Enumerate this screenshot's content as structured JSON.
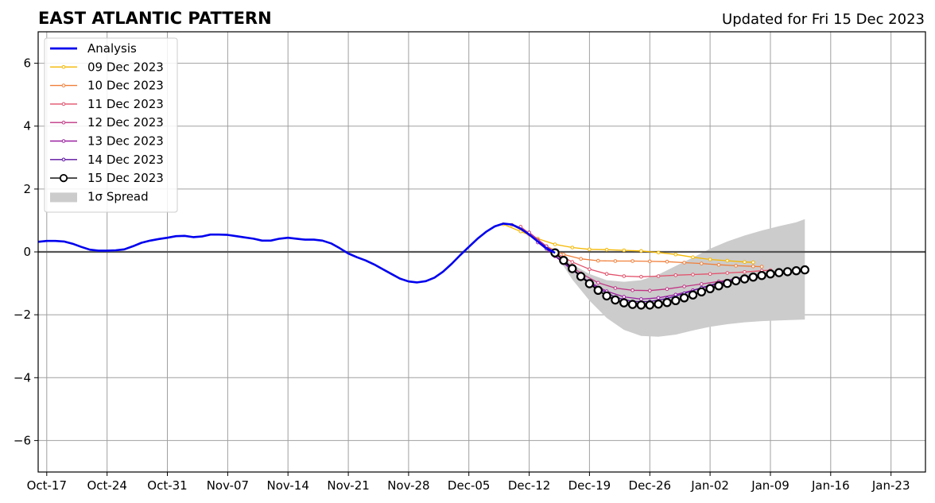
{
  "header": {
    "title": "EAST ATLANTIC PATTERN",
    "updated": "Updated for Fri 15 Dec 2023"
  },
  "chart_data": {
    "type": "line",
    "title": "EAST ATLANTIC PATTERN",
    "subtitle": "Updated for Fri 15 Dec 2023",
    "xlabel": "",
    "ylabel": "",
    "x_axis": {
      "start": "2023-10-16",
      "end": "2024-01-27",
      "ticks": [
        {
          "date": "2023-10-17",
          "label": "Oct-17"
        },
        {
          "date": "2023-10-24",
          "label": "Oct-24"
        },
        {
          "date": "2023-10-31",
          "label": "Oct-31"
        },
        {
          "date": "2023-11-07",
          "label": "Nov-07"
        },
        {
          "date": "2023-11-14",
          "label": "Nov-14"
        },
        {
          "date": "2023-11-21",
          "label": "Nov-21"
        },
        {
          "date": "2023-11-28",
          "label": "Nov-28"
        },
        {
          "date": "2023-12-05",
          "label": "Dec-05"
        },
        {
          "date": "2023-12-12",
          "label": "Dec-12"
        },
        {
          "date": "2023-12-19",
          "label": "Dec-19"
        },
        {
          "date": "2023-12-26",
          "label": "Dec-26"
        },
        {
          "date": "2024-01-02",
          "label": "Jan-02"
        },
        {
          "date": "2024-01-09",
          "label": "Jan-09"
        },
        {
          "date": "2024-01-16",
          "label": "Jan-16"
        },
        {
          "date": "2024-01-23",
          "label": "Jan-23"
        }
      ]
    },
    "y_axis": {
      "ylim": [
        -7,
        7
      ],
      "ticks": [
        {
          "value": 6,
          "label": "6"
        },
        {
          "value": 4,
          "label": "4"
        },
        {
          "value": 2,
          "label": "2"
        },
        {
          "value": 0,
          "label": "0"
        },
        {
          "value": -2,
          "label": "−2"
        },
        {
          "value": -4,
          "label": "−4"
        },
        {
          "value": -6,
          "label": "−6"
        }
      ]
    },
    "grid": true,
    "legend_position": "top-left",
    "zero_line": true,
    "analysis": {
      "name": "Analysis",
      "color": "#0000ee",
      "points": [
        [
          "2023-10-16",
          0.32
        ],
        [
          "2023-10-17",
          0.35
        ],
        [
          "2023-10-18",
          0.35
        ],
        [
          "2023-10-19",
          0.33
        ],
        [
          "2023-10-20",
          0.26
        ],
        [
          "2023-10-21",
          0.16
        ],
        [
          "2023-10-22",
          0.07
        ],
        [
          "2023-10-23",
          0.04
        ],
        [
          "2023-10-24",
          0.04
        ],
        [
          "2023-10-25",
          0.05
        ],
        [
          "2023-10-26",
          0.08
        ],
        [
          "2023-10-27",
          0.18
        ],
        [
          "2023-10-28",
          0.29
        ],
        [
          "2023-10-29",
          0.36
        ],
        [
          "2023-10-30",
          0.41
        ],
        [
          "2023-10-31",
          0.45
        ],
        [
          "2023-11-01",
          0.5
        ],
        [
          "2023-11-02",
          0.51
        ],
        [
          "2023-11-03",
          0.47
        ],
        [
          "2023-11-04",
          0.49
        ],
        [
          "2023-11-05",
          0.55
        ],
        [
          "2023-11-06",
          0.55
        ],
        [
          "2023-11-07",
          0.54
        ],
        [
          "2023-11-08",
          0.5
        ],
        [
          "2023-11-09",
          0.46
        ],
        [
          "2023-11-10",
          0.42
        ],
        [
          "2023-11-11",
          0.36
        ],
        [
          "2023-11-12",
          0.36
        ],
        [
          "2023-11-13",
          0.42
        ],
        [
          "2023-11-14",
          0.45
        ],
        [
          "2023-11-15",
          0.42
        ],
        [
          "2023-11-16",
          0.39
        ],
        [
          "2023-11-17",
          0.39
        ],
        [
          "2023-11-18",
          0.36
        ],
        [
          "2023-11-19",
          0.27
        ],
        [
          "2023-11-20",
          0.12
        ],
        [
          "2023-11-21",
          -0.05
        ],
        [
          "2023-11-22",
          -0.17
        ],
        [
          "2023-11-23",
          -0.27
        ],
        [
          "2023-11-24",
          -0.4
        ],
        [
          "2023-11-25",
          -0.55
        ],
        [
          "2023-11-26",
          -0.7
        ],
        [
          "2023-11-27",
          -0.85
        ],
        [
          "2023-11-28",
          -0.94
        ],
        [
          "2023-11-29",
          -0.97
        ],
        [
          "2023-11-30",
          -0.93
        ],
        [
          "2023-12-01",
          -0.82
        ],
        [
          "2023-12-02",
          -0.63
        ],
        [
          "2023-12-03",
          -0.38
        ],
        [
          "2023-12-04",
          -0.1
        ],
        [
          "2023-12-05",
          0.16
        ],
        [
          "2023-12-06",
          0.42
        ],
        [
          "2023-12-07",
          0.64
        ],
        [
          "2023-12-08",
          0.81
        ],
        [
          "2023-12-09",
          0.9
        ],
        [
          "2023-12-10",
          0.87
        ],
        [
          "2023-12-11",
          0.74
        ],
        [
          "2023-12-12",
          0.55
        ],
        [
          "2023-12-13",
          0.33
        ],
        [
          "2023-12-14",
          0.12
        ],
        [
          "2023-12-15",
          -0.03
        ]
      ]
    },
    "spread": {
      "name": "1σ Spread",
      "color": "#cccccc",
      "upper": [
        [
          "2023-12-15",
          -0.03
        ],
        [
          "2023-12-17",
          -0.4
        ],
        [
          "2023-12-19",
          -0.7
        ],
        [
          "2023-12-21",
          -0.9
        ],
        [
          "2023-12-23",
          -0.95
        ],
        [
          "2023-12-25",
          -0.9
        ],
        [
          "2023-12-27",
          -0.72
        ],
        [
          "2023-12-29",
          -0.45
        ],
        [
          "2023-12-31",
          -0.18
        ],
        [
          "2024-01-02",
          0.1
        ],
        [
          "2024-01-04",
          0.33
        ],
        [
          "2024-01-06",
          0.52
        ],
        [
          "2024-01-08",
          0.68
        ],
        [
          "2024-01-10",
          0.82
        ],
        [
          "2024-01-12",
          0.94
        ],
        [
          "2024-01-13",
          1.04
        ]
      ],
      "lower": [
        [
          "2023-12-15",
          -0.03
        ],
        [
          "2023-12-17",
          -0.88
        ],
        [
          "2023-12-19",
          -1.55
        ],
        [
          "2023-12-21",
          -2.1
        ],
        [
          "2023-12-23",
          -2.48
        ],
        [
          "2023-12-25",
          -2.67
        ],
        [
          "2023-12-27",
          -2.7
        ],
        [
          "2023-12-29",
          -2.63
        ],
        [
          "2023-12-31",
          -2.5
        ],
        [
          "2024-01-02",
          -2.38
        ],
        [
          "2024-01-04",
          -2.3
        ],
        [
          "2024-01-06",
          -2.24
        ],
        [
          "2024-01-08",
          -2.2
        ],
        [
          "2024-01-10",
          -2.18
        ],
        [
          "2024-01-12",
          -2.16
        ],
        [
          "2024-01-13",
          -2.15
        ]
      ]
    },
    "forecasts": [
      {
        "name": "09 Dec 2023",
        "color": "#f5b800",
        "points": [
          [
            "2023-12-09",
            0.88
          ],
          [
            "2023-12-11",
            0.65
          ],
          [
            "2023-12-13",
            0.42
          ],
          [
            "2023-12-15",
            0.24
          ],
          [
            "2023-12-17",
            0.14
          ],
          [
            "2023-12-19",
            0.08
          ],
          [
            "2023-12-21",
            0.07
          ],
          [
            "2023-12-23",
            0.05
          ],
          [
            "2023-12-25",
            0.03
          ],
          [
            "2023-12-27",
            -0.02
          ],
          [
            "2023-12-29",
            -0.08
          ],
          [
            "2023-12-31",
            -0.17
          ],
          [
            "2024-01-02",
            -0.24
          ],
          [
            "2024-01-04",
            -0.28
          ],
          [
            "2024-01-06",
            -0.32
          ],
          [
            "2024-01-07",
            -0.33
          ]
        ]
      },
      {
        "name": "10 Dec 2023",
        "color": "#f07f3a",
        "points": [
          [
            "2023-12-10",
            0.86
          ],
          [
            "2023-12-12",
            0.55
          ],
          [
            "2023-12-14",
            0.18
          ],
          [
            "2023-12-16",
            -0.08
          ],
          [
            "2023-12-18",
            -0.22
          ],
          [
            "2023-12-20",
            -0.28
          ],
          [
            "2023-12-22",
            -0.29
          ],
          [
            "2023-12-24",
            -0.29
          ],
          [
            "2023-12-26",
            -0.3
          ],
          [
            "2023-12-28",
            -0.31
          ],
          [
            "2023-12-30",
            -0.34
          ],
          [
            "2024-01-01",
            -0.37
          ],
          [
            "2024-01-03",
            -0.41
          ],
          [
            "2024-01-05",
            -0.44
          ],
          [
            "2024-01-07",
            -0.46
          ],
          [
            "2024-01-08",
            -0.47
          ]
        ]
      },
      {
        "name": "11 Dec 2023",
        "color": "#e2516b",
        "points": [
          [
            "2023-12-11",
            0.8
          ],
          [
            "2023-12-13",
            0.38
          ],
          [
            "2023-12-15",
            -0.02
          ],
          [
            "2023-12-17",
            -0.32
          ],
          [
            "2023-12-19",
            -0.55
          ],
          [
            "2023-12-21",
            -0.7
          ],
          [
            "2023-12-23",
            -0.77
          ],
          [
            "2023-12-25",
            -0.79
          ],
          [
            "2023-12-27",
            -0.77
          ],
          [
            "2023-12-29",
            -0.74
          ],
          [
            "2023-12-31",
            -0.72
          ],
          [
            "2024-01-02",
            -0.7
          ],
          [
            "2024-01-04",
            -0.67
          ],
          [
            "2024-01-06",
            -0.64
          ],
          [
            "2024-01-08",
            -0.6
          ],
          [
            "2024-01-09",
            -0.58
          ]
        ]
      },
      {
        "name": "12 Dec 2023",
        "color": "#c13584",
        "points": [
          [
            "2023-12-12",
            0.62
          ],
          [
            "2023-12-14",
            0.18
          ],
          [
            "2023-12-16",
            -0.28
          ],
          [
            "2023-12-18",
            -0.68
          ],
          [
            "2023-12-20",
            -0.98
          ],
          [
            "2023-12-22",
            -1.15
          ],
          [
            "2023-12-24",
            -1.22
          ],
          [
            "2023-12-26",
            -1.23
          ],
          [
            "2023-12-28",
            -1.18
          ],
          [
            "2023-12-30",
            -1.1
          ],
          [
            "2024-01-01",
            -1.02
          ],
          [
            "2024-01-03",
            -0.94
          ],
          [
            "2024-01-05",
            -0.86
          ],
          [
            "2024-01-07",
            -0.79
          ],
          [
            "2024-01-09",
            -0.73
          ],
          [
            "2024-01-10",
            -0.7
          ]
        ]
      },
      {
        "name": "13 Dec 2023",
        "color": "#9a1fa0",
        "points": [
          [
            "2023-12-13",
            0.3
          ],
          [
            "2023-12-15",
            -0.14
          ],
          [
            "2023-12-17",
            -0.58
          ],
          [
            "2023-12-19",
            -0.96
          ],
          [
            "2023-12-21",
            -1.25
          ],
          [
            "2023-12-23",
            -1.43
          ],
          [
            "2023-12-25",
            -1.5
          ],
          [
            "2023-12-27",
            -1.46
          ],
          [
            "2023-12-29",
            -1.36
          ],
          [
            "2023-12-31",
            -1.22
          ],
          [
            "2024-01-02",
            -1.08
          ],
          [
            "2024-01-04",
            -0.95
          ],
          [
            "2024-01-06",
            -0.84
          ],
          [
            "2024-01-08",
            -0.75
          ],
          [
            "2024-01-10",
            -0.69
          ],
          [
            "2024-01-11",
            -0.66
          ]
        ]
      },
      {
        "name": "14 Dec 2023",
        "color": "#5b0fa0",
        "points": [
          [
            "2023-12-14",
            0.1
          ],
          [
            "2023-12-16",
            -0.34
          ],
          [
            "2023-12-18",
            -0.78
          ],
          [
            "2023-12-20",
            -1.16
          ],
          [
            "2023-12-22",
            -1.44
          ],
          [
            "2023-12-24",
            -1.58
          ],
          [
            "2023-12-26",
            -1.58
          ],
          [
            "2023-12-28",
            -1.48
          ],
          [
            "2023-12-30",
            -1.32
          ],
          [
            "2024-01-01",
            -1.14
          ],
          [
            "2024-01-03",
            -0.98
          ],
          [
            "2024-01-05",
            -0.85
          ],
          [
            "2024-01-07",
            -0.75
          ],
          [
            "2024-01-09",
            -0.68
          ],
          [
            "2024-01-11",
            -0.63
          ],
          [
            "2024-01-12",
            -0.61
          ]
        ]
      },
      {
        "name": "15 Dec 2023",
        "color": "#000000",
        "points": [
          [
            "2023-12-15",
            -0.03
          ],
          [
            "2023-12-16",
            -0.27
          ],
          [
            "2023-12-17",
            -0.53
          ],
          [
            "2023-12-18",
            -0.78
          ],
          [
            "2023-12-19",
            -1.01
          ],
          [
            "2023-12-20",
            -1.22
          ],
          [
            "2023-12-21",
            -1.4
          ],
          [
            "2023-12-22",
            -1.53
          ],
          [
            "2023-12-23",
            -1.62
          ],
          [
            "2023-12-24",
            -1.67
          ],
          [
            "2023-12-25",
            -1.69
          ],
          [
            "2023-12-26",
            -1.69
          ],
          [
            "2023-12-27",
            -1.66
          ],
          [
            "2023-12-28",
            -1.61
          ],
          [
            "2023-12-29",
            -1.55
          ],
          [
            "2023-12-30",
            -1.46
          ],
          [
            "2023-12-31",
            -1.37
          ],
          [
            "2024-01-01",
            -1.27
          ],
          [
            "2024-01-02",
            -1.17
          ],
          [
            "2024-01-03",
            -1.08
          ],
          [
            "2024-01-04",
            -1.0
          ],
          [
            "2024-01-05",
            -0.92
          ],
          [
            "2024-01-06",
            -0.86
          ],
          [
            "2024-01-07",
            -0.8
          ],
          [
            "2024-01-08",
            -0.75
          ],
          [
            "2024-01-09",
            -0.7
          ],
          [
            "2024-01-10",
            -0.66
          ],
          [
            "2024-01-11",
            -0.63
          ],
          [
            "2024-01-12",
            -0.6
          ],
          [
            "2024-01-13",
            -0.57
          ]
        ]
      }
    ]
  }
}
